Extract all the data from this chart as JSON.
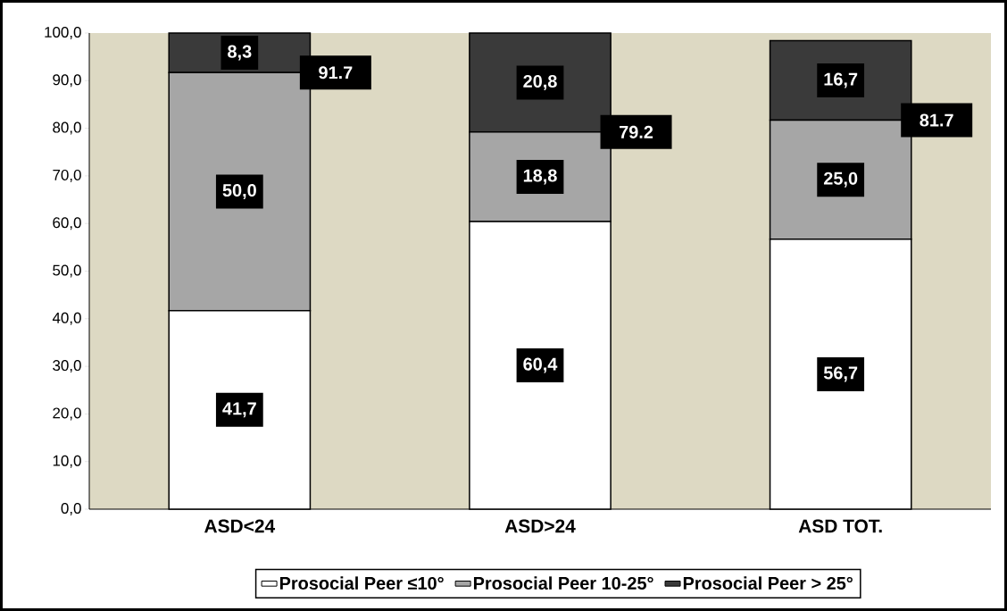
{
  "chart_data": {
    "type": "bar",
    "stacked": true,
    "categories": [
      "ASD<24",
      "ASD>24",
      "ASD TOT."
    ],
    "series": [
      {
        "name": "Prosocial Peer ≤10°",
        "color": "#ffffff",
        "values": [
          41.7,
          60.4,
          56.7
        ],
        "value_labels": [
          "41,7",
          "60,4",
          "56,7"
        ]
      },
      {
        "name": "Prosocial Peer 10-25°",
        "color": "#a6a6a6",
        "values": [
          50.0,
          18.8,
          25.0
        ],
        "value_labels": [
          "50,0",
          "18,8",
          "25,0"
        ]
      },
      {
        "name": "Prosocial Peer > 25°",
        "color": "#3a3a3a",
        "values": [
          8.3,
          20.8,
          16.7
        ],
        "value_labels": [
          "8,3",
          "20,8",
          "16,7"
        ]
      }
    ],
    "ylim": [
      0,
      100
    ],
    "yticks": [
      {
        "value": 0,
        "label": "0,0"
      },
      {
        "value": 10,
        "label": "10,0"
      },
      {
        "value": 20,
        "label": "20,0"
      },
      {
        "value": 30,
        "label": "30,0"
      },
      {
        "value": 40,
        "label": "40,0"
      },
      {
        "value": 50,
        "label": "50,0"
      },
      {
        "value": 60,
        "label": "60,0"
      },
      {
        "value": 70,
        "label": "70,0"
      },
      {
        "value": 80,
        "label": "80,0"
      },
      {
        "value": 90,
        "label": "90,0"
      },
      {
        "value": 100,
        "label": "100,0"
      }
    ],
    "annotations": [
      "91.7",
      "79.2",
      "81.7"
    ],
    "legend": "bottom"
  }
}
